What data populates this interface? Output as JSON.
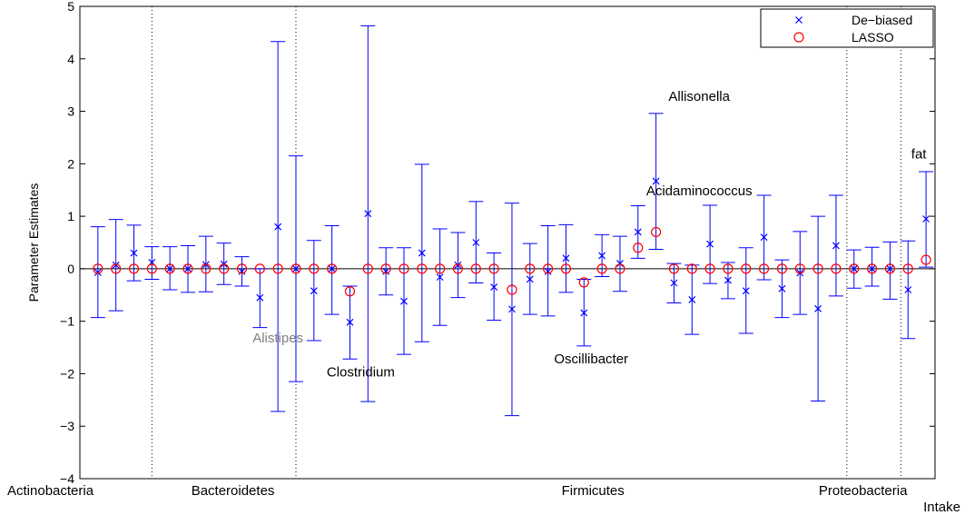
{
  "chart_data": {
    "type": "scatter",
    "ylabel": "Parameter Estimates",
    "ylim": [
      -4,
      5
    ],
    "yticks": [
      -4,
      -3,
      -2,
      -1,
      0,
      1,
      2,
      3,
      4,
      5
    ],
    "grid": false,
    "legend_position": "top-right",
    "legend": [
      {
        "name": "De−biased",
        "marker": "x",
        "color": "#0000ff"
      },
      {
        "name": "LASSO",
        "marker": "circle",
        "color": "#ff0000"
      }
    ],
    "x_count": 47,
    "groups": [
      {
        "label": "Actinobacteria",
        "x_center": 2.5
      },
      {
        "label": "Bacteroidetes",
        "x_center": 8.5
      },
      {
        "label": "Firmicutes",
        "x_center": 28.5
      },
      {
        "label": "Proteobacteria",
        "x_center": 43.5
      },
      {
        "label": "Intake",
        "x_center": 47
      }
    ],
    "separators": [
      4,
      12,
      42.6,
      45.6
    ],
    "annotations": [
      {
        "text": "Alistipes",
        "x": 11,
        "y": -1.4,
        "color": "#808080"
      },
      {
        "text": "Clostridium",
        "x": 15.6,
        "y": -2.05,
        "color": "#000000"
      },
      {
        "text": "Allisonella",
        "x": 34.4,
        "y": 3.2,
        "color": "#000000"
      },
      {
        "text": "Acidaminococcus",
        "x": 34.4,
        "y": 1.4,
        "color": "#000000"
      },
      {
        "text": "Oscillibacter",
        "x": 28.4,
        "y": -1.8,
        "color": "#000000"
      },
      {
        "text": "fat",
        "x": 46.6,
        "y": 2.1,
        "color": "#000000"
      }
    ],
    "series": [
      {
        "name": "De−biased",
        "x": [
          1,
          2,
          3,
          4,
          5,
          6,
          7,
          8,
          9,
          10,
          11,
          12,
          13,
          14,
          15,
          16,
          17,
          18,
          19,
          20,
          21,
          22,
          23,
          24,
          25,
          26,
          27,
          28,
          29,
          30,
          31,
          32,
          33,
          34,
          35,
          36,
          37,
          38,
          39,
          40,
          41,
          42,
          43,
          44,
          45,
          46,
          47
        ],
        "y": [
          -0.07,
          0.07,
          0.3,
          0.12,
          0,
          0,
          0.08,
          0.09,
          -0.05,
          -0.55,
          0.8,
          0,
          -0.42,
          0,
          -1.02,
          1.05,
          -0.05,
          -0.62,
          0.3,
          -0.16,
          0.07,
          0.5,
          -0.35,
          -0.77,
          -0.2,
          -0.05,
          0.2,
          -0.84,
          0.25,
          0.1,
          0.7,
          1.67,
          -0.27,
          -0.59,
          0.47,
          -0.22,
          -0.42,
          0.6,
          -0.38,
          -0.08,
          -0.76,
          0.44,
          0,
          0,
          0,
          -0.4,
          0.95
        ],
        "lower": [
          -0.93,
          -0.8,
          -0.23,
          -0.2,
          -0.4,
          -0.45,
          -0.44,
          -0.3,
          -0.33,
          -1.12,
          -2.72,
          -2.15,
          -1.37,
          -0.87,
          -1.72,
          -2.53,
          -0.5,
          -1.63,
          -1.39,
          -1.08,
          -0.55,
          -0.27,
          -0.98,
          -2.8,
          -0.87,
          -0.9,
          -0.45,
          -1.47,
          -0.15,
          -0.43,
          0.2,
          0.37,
          -0.65,
          -1.25,
          -0.28,
          -0.57,
          -1.23,
          -0.21,
          -0.93,
          -0.87,
          -2.52,
          -0.52,
          -0.37,
          -0.33,
          -0.58,
          -1.33,
          0.03
        ],
        "upper": [
          0.8,
          0.94,
          0.83,
          0.42,
          0.42,
          0.44,
          0.62,
          0.49,
          0.23,
          0,
          4.33,
          2.15,
          0.54,
          0.82,
          -0.33,
          4.63,
          0.4,
          0.4,
          1.99,
          0.76,
          0.69,
          1.28,
          0.3,
          1.25,
          0.48,
          0.82,
          0.84,
          -0.2,
          0.65,
          0.62,
          1.2,
          2.96,
          0.1,
          0.07,
          1.21,
          0.12,
          0.4,
          1.4,
          0.17,
          0.71,
          1,
          1.4,
          0.36,
          0.41,
          0.51,
          0.53,
          1.85
        ]
      },
      {
        "name": "LASSO",
        "x": [
          1,
          2,
          3,
          4,
          5,
          6,
          7,
          8,
          9,
          10,
          11,
          12,
          13,
          14,
          15,
          16,
          17,
          18,
          19,
          20,
          21,
          22,
          23,
          24,
          25,
          26,
          27,
          28,
          29,
          30,
          31,
          32,
          33,
          34,
          35,
          36,
          37,
          38,
          39,
          40,
          41,
          42,
          43,
          44,
          45,
          46,
          47
        ],
        "y": [
          0,
          0,
          0,
          0,
          0,
          0,
          0,
          0,
          0,
          0,
          0,
          0,
          0,
          0,
          -0.43,
          0,
          0,
          0,
          0,
          0,
          0,
          0,
          0,
          -0.4,
          0,
          0,
          0,
          -0.26,
          0,
          0,
          0.4,
          0.7,
          0,
          0,
          0,
          0,
          0,
          0,
          0,
          0,
          0,
          0,
          0,
          0,
          0,
          0,
          0.17
        ]
      }
    ]
  }
}
